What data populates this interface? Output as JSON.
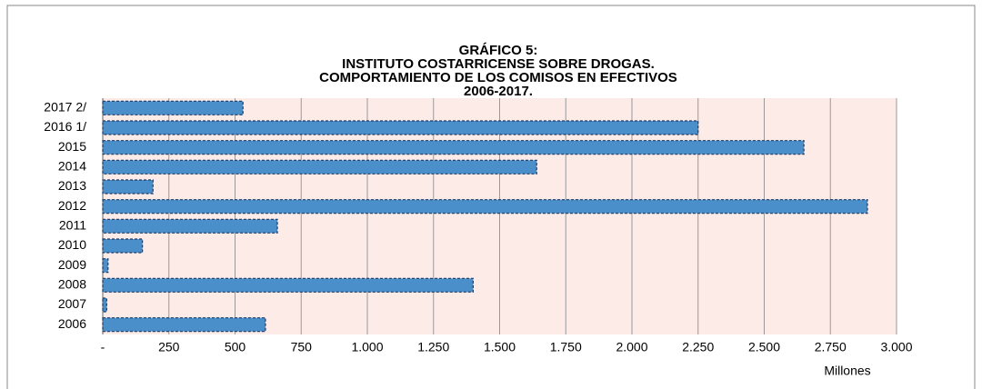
{
  "chart_data": {
    "type": "barh",
    "title": [
      "GRÁFICO 5:",
      "INSTITUTO COSTARRICENSE SOBRE DROGAS.",
      "COMPORTAMIENTO DE LOS COMISOS EN EFECTIVOS",
      "2006-2017."
    ],
    "categories": [
      "2017 2/",
      "2016 1/",
      "2015",
      "2014",
      "2013",
      "2012",
      "2011",
      "2010",
      "2009",
      "2008",
      "2007",
      "2006"
    ],
    "values": [
      530,
      2250,
      2650,
      1640,
      190,
      2890,
      660,
      150,
      20,
      1400,
      15,
      615
    ],
    "color": "#4a8fca",
    "xlim": [
      0,
      3000
    ],
    "xticks": [
      {
        "value": 0,
        "label": "-"
      },
      250,
      500,
      750,
      {
        "value": 1000,
        "label": "1.000"
      },
      {
        "value": 1250,
        "label": "1.250"
      },
      {
        "value": 1500,
        "label": "1.500"
      },
      {
        "value": 1750,
        "label": "1.750"
      },
      {
        "value": 2000,
        "label": "2.000"
      },
      {
        "value": 2250,
        "label": "2.250"
      },
      {
        "value": 2500,
        "label": "2.500"
      },
      {
        "value": 2750,
        "label": "2.750"
      },
      {
        "value": 3000,
        "label": "3.000"
      }
    ],
    "xlabel": "Millones",
    "grid": true
  }
}
